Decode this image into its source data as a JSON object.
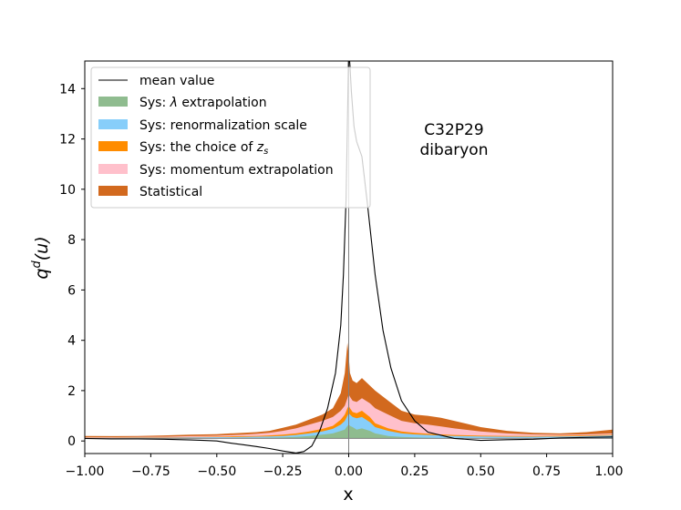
{
  "chart_data": {
    "type": "area",
    "xlabel": "x",
    "ylabel": "q^d(u)",
    "xlim": [
      -1.0,
      1.0
    ],
    "ylim": [
      -0.6,
      15.0
    ],
    "x_ticks": [
      -1.0,
      -0.75,
      -0.5,
      -0.25,
      0.0,
      0.25,
      0.5,
      0.75,
      1.0
    ],
    "x_tick_labels": [
      "−1.00",
      "−0.75",
      "−0.50",
      "−0.25",
      "0.00",
      "0.25",
      "0.50",
      "0.75",
      "1.00"
    ],
    "y_ticks": [
      0,
      2,
      4,
      6,
      8,
      10,
      12,
      14
    ],
    "y_tick_labels": [
      "0",
      "2",
      "4",
      "6",
      "8",
      "10",
      "12",
      "14"
    ],
    "annotation": {
      "line1": "C32P29",
      "line2": "dibaryon"
    },
    "legend": {
      "position": "upper-left",
      "entries": [
        {
          "key": "mean",
          "kind": "line",
          "label": "mean value",
          "color": "#000000"
        },
        {
          "key": "lambda",
          "kind": "patch",
          "label_prefix": "Sys: ",
          "label_symbol": "λ",
          "label_suffix": " extrapolation",
          "color": "#8fbc8f"
        },
        {
          "key": "renorm",
          "kind": "patch",
          "label": "Sys: renormalization scale",
          "color": "#87cefa"
        },
        {
          "key": "zs",
          "kind": "patch",
          "label_prefix": "Sys: the choice of ",
          "label_symbol": "z",
          "label_sub": "s",
          "color": "#ff8c00"
        },
        {
          "key": "momentum",
          "kind": "patch",
          "label": "Sys: momentum extrapolation",
          "color": "#ffc0cb"
        },
        {
          "key": "stat",
          "kind": "patch",
          "label": "Statistical",
          "color": "#d2691e"
        }
      ]
    },
    "series": {
      "mean": {
        "x": [
          -1.0,
          -0.9,
          -0.8,
          -0.7,
          -0.6,
          -0.55,
          -0.5,
          -0.45,
          -0.4,
          -0.35,
          -0.3,
          -0.25,
          -0.2,
          -0.17,
          -0.14,
          -0.11,
          -0.08,
          -0.05,
          -0.03,
          -0.02,
          -0.01,
          0.0,
          0.005,
          0.01,
          0.02,
          0.03,
          0.05,
          0.07,
          0.1,
          0.13,
          0.16,
          0.2,
          0.25,
          0.3,
          0.4,
          0.5,
          0.6,
          0.7,
          0.8,
          0.9,
          1.0
        ],
        "y": [
          0.0,
          -0.02,
          -0.02,
          -0.03,
          -0.06,
          -0.08,
          -0.1,
          -0.18,
          -0.25,
          -0.32,
          -0.4,
          -0.5,
          -0.58,
          -0.52,
          -0.3,
          0.3,
          1.2,
          2.6,
          4.5,
          6.5,
          9.5,
          15.5,
          14.8,
          13.8,
          12.4,
          11.8,
          11.2,
          9.4,
          6.5,
          4.3,
          2.8,
          1.5,
          0.7,
          0.25,
          0.0,
          -0.08,
          -0.05,
          -0.03,
          0.02,
          0.04,
          0.06
        ]
      },
      "stack_x": [
        -1.0,
        -0.9,
        -0.8,
        -0.7,
        -0.6,
        -0.5,
        -0.45,
        -0.4,
        -0.35,
        -0.3,
        -0.25,
        -0.2,
        -0.15,
        -0.1,
        -0.06,
        -0.03,
        -0.015,
        -0.005,
        0.0,
        0.005,
        0.015,
        0.03,
        0.05,
        0.08,
        0.1,
        0.15,
        0.2,
        0.25,
        0.3,
        0.35,
        0.4,
        0.5,
        0.6,
        0.7,
        0.8,
        0.9,
        1.0
      ],
      "stack_top": {
        "lambda": [
          0.0,
          0.0,
          0.0,
          0.0,
          0.01,
          0.01,
          0.01,
          0.02,
          0.02,
          0.03,
          0.04,
          0.06,
          0.1,
          0.15,
          0.2,
          0.3,
          0.35,
          0.5,
          0.55,
          0.5,
          0.45,
          0.35,
          0.4,
          0.3,
          0.2,
          0.1,
          0.06,
          0.04,
          0.03,
          0.02,
          0.02,
          0.01,
          0.01,
          0.01,
          0.01,
          0.01,
          0.02
        ],
        "renorm": [
          0.02,
          0.02,
          0.03,
          0.03,
          0.04,
          0.05,
          0.05,
          0.06,
          0.07,
          0.08,
          0.1,
          0.14,
          0.2,
          0.28,
          0.38,
          0.55,
          0.7,
          0.9,
          1.0,
          0.95,
          0.85,
          0.8,
          0.85,
          0.65,
          0.45,
          0.3,
          0.2,
          0.16,
          0.14,
          0.12,
          0.1,
          0.08,
          0.07,
          0.07,
          0.08,
          0.09,
          0.12
        ],
        "zs": [
          0.03,
          0.03,
          0.04,
          0.04,
          0.05,
          0.07,
          0.08,
          0.09,
          0.1,
          0.12,
          0.15,
          0.2,
          0.28,
          0.38,
          0.5,
          0.75,
          0.95,
          1.2,
          1.3,
          1.2,
          1.05,
          1.0,
          1.1,
          0.85,
          0.6,
          0.4,
          0.28,
          0.22,
          0.19,
          0.16,
          0.14,
          0.11,
          0.1,
          0.1,
          0.11,
          0.12,
          0.15
        ],
        "momentum": [
          0.05,
          0.05,
          0.06,
          0.07,
          0.09,
          0.11,
          0.13,
          0.15,
          0.18,
          0.22,
          0.3,
          0.4,
          0.55,
          0.7,
          0.85,
          1.1,
          1.3,
          1.6,
          1.75,
          1.65,
          1.5,
          1.45,
          1.6,
          1.4,
          1.2,
          0.95,
          0.7,
          0.6,
          0.55,
          0.48,
          0.4,
          0.28,
          0.2,
          0.16,
          0.15,
          0.16,
          0.2
        ],
        "stat": [
          0.1,
          0.09,
          0.1,
          0.12,
          0.15,
          0.17,
          0.2,
          0.22,
          0.25,
          0.3,
          0.42,
          0.55,
          0.75,
          0.95,
          1.2,
          1.8,
          2.6,
          3.8,
          3.3,
          2.6,
          2.3,
          2.2,
          2.4,
          2.1,
          1.9,
          1.5,
          1.1,
          0.95,
          0.9,
          0.82,
          0.7,
          0.45,
          0.3,
          0.22,
          0.2,
          0.25,
          0.35
        ]
      }
    }
  }
}
